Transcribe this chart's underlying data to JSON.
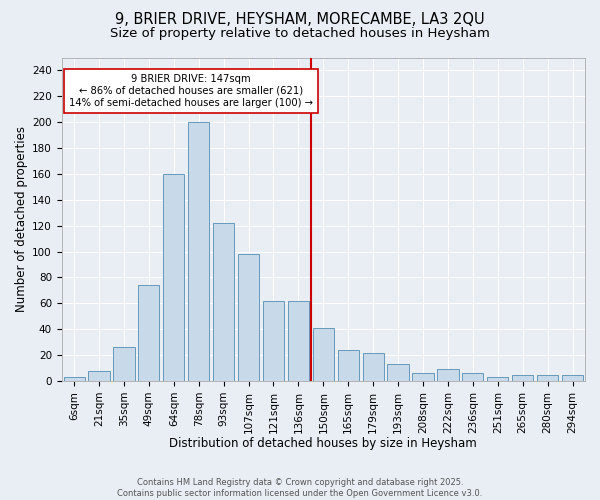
{
  "title": "9, BRIER DRIVE, HEYSHAM, MORECAMBE, LA3 2QU",
  "subtitle": "Size of property relative to detached houses in Heysham",
  "xlabel": "Distribution of detached houses by size in Heysham",
  "ylabel": "Number of detached properties",
  "bar_labels": [
    "6sqm",
    "21sqm",
    "35sqm",
    "49sqm",
    "64sqm",
    "78sqm",
    "93sqm",
    "107sqm",
    "121sqm",
    "136sqm",
    "150sqm",
    "165sqm",
    "179sqm",
    "193sqm",
    "208sqm",
    "222sqm",
    "236sqm",
    "251sqm",
    "265sqm",
    "280sqm",
    "294sqm"
  ],
  "bar_values": [
    3,
    8,
    26,
    74,
    160,
    200,
    122,
    98,
    62,
    62,
    41,
    24,
    22,
    13,
    6,
    9,
    6,
    3,
    5,
    5,
    5
  ],
  "bar_color": "#c8d9ea",
  "bar_edge_color": "#6699bb",
  "vline_color": "#cc0000",
  "annotation_text": "9 BRIER DRIVE: 147sqm\n← 86% of detached houses are smaller (621)\n14% of semi-detached houses are larger (100) →",
  "annotation_box_color": "#ffffff",
  "annotation_box_edge": "#cc0000",
  "ylim": [
    0,
    250
  ],
  "yticks": [
    0,
    20,
    40,
    60,
    80,
    100,
    120,
    140,
    160,
    180,
    200,
    220,
    240
  ],
  "grid_color": "#ffffff",
  "bg_color": "#e8eef4",
  "footer": "Contains HM Land Registry data © Crown copyright and database right 2025.\nContains public sector information licensed under the Open Government Licence v3.0.",
  "title_fontsize": 10.5,
  "subtitle_fontsize": 9.5,
  "tick_fontsize": 7.5,
  "axis_label_fontsize": 8.5,
  "footer_fontsize": 6.0
}
